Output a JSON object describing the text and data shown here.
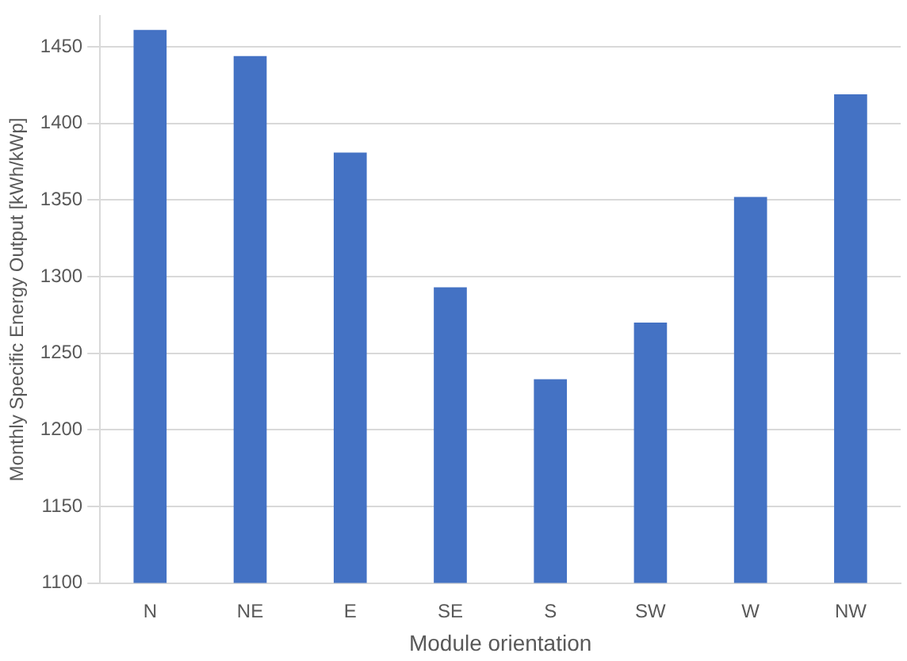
{
  "chart_data": {
    "type": "bar",
    "xlabel": "Module orientation",
    "ylabel": "Monthly Specific Energy Output [kWh/kWp]",
    "categories": [
      "N",
      "NE",
      "E",
      "SE",
      "S",
      "SW",
      "W",
      "NW"
    ],
    "values": [
      1461,
      1444,
      1381,
      1293,
      1233,
      1270,
      1352,
      1419
    ],
    "color": "#4472c4",
    "ylim": [
      1100,
      1470
    ],
    "yticks": [
      1100,
      1150,
      1200,
      1250,
      1300,
      1350,
      1400,
      1450
    ],
    "grid": "y",
    "legend": false
  }
}
